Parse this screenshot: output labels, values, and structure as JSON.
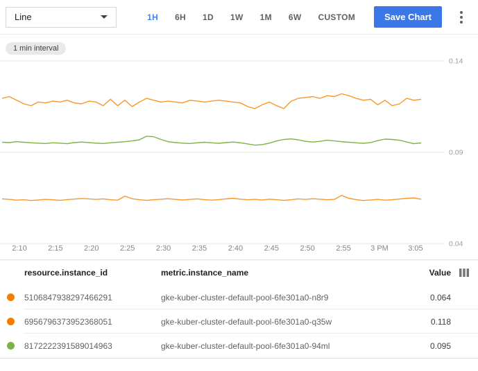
{
  "toolbar": {
    "chart_type": "Line",
    "ranges": [
      "1H",
      "6H",
      "1D",
      "1W",
      "1M",
      "6W",
      "CUSTOM"
    ],
    "selected_range": "1H",
    "save_label": "Save Chart"
  },
  "colors": {
    "accent_blue": "#4285f4",
    "save_button": "#3b78e7",
    "orange_series": "#f9962b",
    "orange_dot": "#f57c00",
    "green_series": "#7cb342"
  },
  "chart_data": {
    "type": "line",
    "interval_label": "1 min interval",
    "x_ticks": [
      "2:10",
      "2:15",
      "2:20",
      "2:25",
      "2:30",
      "2:35",
      "2:40",
      "2:45",
      "2:50",
      "2:55",
      "3 PM",
      "3:05"
    ],
    "y_ticks": [
      "0.14",
      "0.09",
      "0.04"
    ],
    "ylim": [
      0.04,
      0.14
    ],
    "grid": true,
    "legend_position": "table-below",
    "series": [
      {
        "name": "gke-kuber-cluster-default-pool-6fe301a0-q35w",
        "color": "#f9962b",
        "values": [
          0.1195,
          0.1205,
          0.1185,
          0.1165,
          0.1155,
          0.1175,
          0.117,
          0.118,
          0.1175,
          0.1185,
          0.117,
          0.1165,
          0.118,
          0.1175,
          0.1155,
          0.119,
          0.1155,
          0.1185,
          0.115,
          0.1175,
          0.1195,
          0.1185,
          0.1175,
          0.118,
          0.1175,
          0.117,
          0.1185,
          0.118,
          0.1175,
          0.118,
          0.1185,
          0.118,
          0.1175,
          0.117,
          0.115,
          0.1139,
          0.116,
          0.1175,
          0.1155,
          0.1139,
          0.118,
          0.1195,
          0.12,
          0.1205,
          0.1195,
          0.121,
          0.1205,
          0.122,
          0.121,
          0.1195,
          0.1185,
          0.119,
          0.116,
          0.1185,
          0.1155,
          0.1165,
          0.1195,
          0.1185,
          0.119
        ]
      },
      {
        "name": "gke-kuber-cluster-default-pool-6fe301a0-94ml",
        "color": "#7cb342",
        "values": [
          0.0955,
          0.0953,
          0.0958,
          0.0955,
          0.0952,
          0.095,
          0.0948,
          0.0952,
          0.095,
          0.0947,
          0.0953,
          0.0956,
          0.0953,
          0.095,
          0.0948,
          0.0952,
          0.0955,
          0.0958,
          0.0962,
          0.0968,
          0.0988,
          0.0985,
          0.097,
          0.0958,
          0.0953,
          0.095,
          0.0948,
          0.0952,
          0.0955,
          0.0952,
          0.0949,
          0.0953,
          0.0956,
          0.0952,
          0.0946,
          0.0939,
          0.0942,
          0.095,
          0.0962,
          0.097,
          0.0973,
          0.0968,
          0.096,
          0.0956,
          0.096,
          0.0966,
          0.0962,
          0.0958,
          0.0955,
          0.0952,
          0.0949,
          0.0953,
          0.0964,
          0.0972,
          0.097,
          0.0966,
          0.0956,
          0.0947,
          0.0951
        ]
      },
      {
        "name": "gke-kuber-cluster-default-pool-6fe301a0-n8r9",
        "color": "#f9962b",
        "values": [
          0.0645,
          0.0642,
          0.0638,
          0.064,
          0.0636,
          0.0639,
          0.0642,
          0.064,
          0.0637,
          0.0641,
          0.0644,
          0.0647,
          0.0645,
          0.0642,
          0.0645,
          0.064,
          0.0638,
          0.066,
          0.0646,
          0.064,
          0.0637,
          0.064,
          0.0643,
          0.0646,
          0.0642,
          0.0639,
          0.0642,
          0.0645,
          0.0641,
          0.0638,
          0.0641,
          0.0645,
          0.0648,
          0.0643,
          0.064,
          0.0642,
          0.0639,
          0.0643,
          0.064,
          0.0637,
          0.064,
          0.0645,
          0.0642,
          0.0646,
          0.0643,
          0.064,
          0.0642,
          0.0664,
          0.0648,
          0.0641,
          0.0636,
          0.0639,
          0.0642,
          0.0638,
          0.064,
          0.0644,
          0.0648,
          0.065,
          0.0643
        ]
      }
    ]
  },
  "table": {
    "columns": {
      "instance_id": "resource.instance_id",
      "metric_name": "metric.instance_name",
      "value": "Value"
    },
    "rows": [
      {
        "dot_color": "#f57c00",
        "instance_id": "5106847938297466291",
        "metric_name": "gke-kuber-cluster-default-pool-6fe301a0-n8r9",
        "value": "0.064"
      },
      {
        "dot_color": "#f57c00",
        "instance_id": "6956796373952368051",
        "metric_name": "gke-kuber-cluster-default-pool-6fe301a0-q35w",
        "value": "0.118"
      },
      {
        "dot_color": "#7cb342",
        "instance_id": "8172222391589014963",
        "metric_name": "gke-kuber-cluster-default-pool-6fe301a0-94ml",
        "value": "0.095"
      }
    ]
  }
}
